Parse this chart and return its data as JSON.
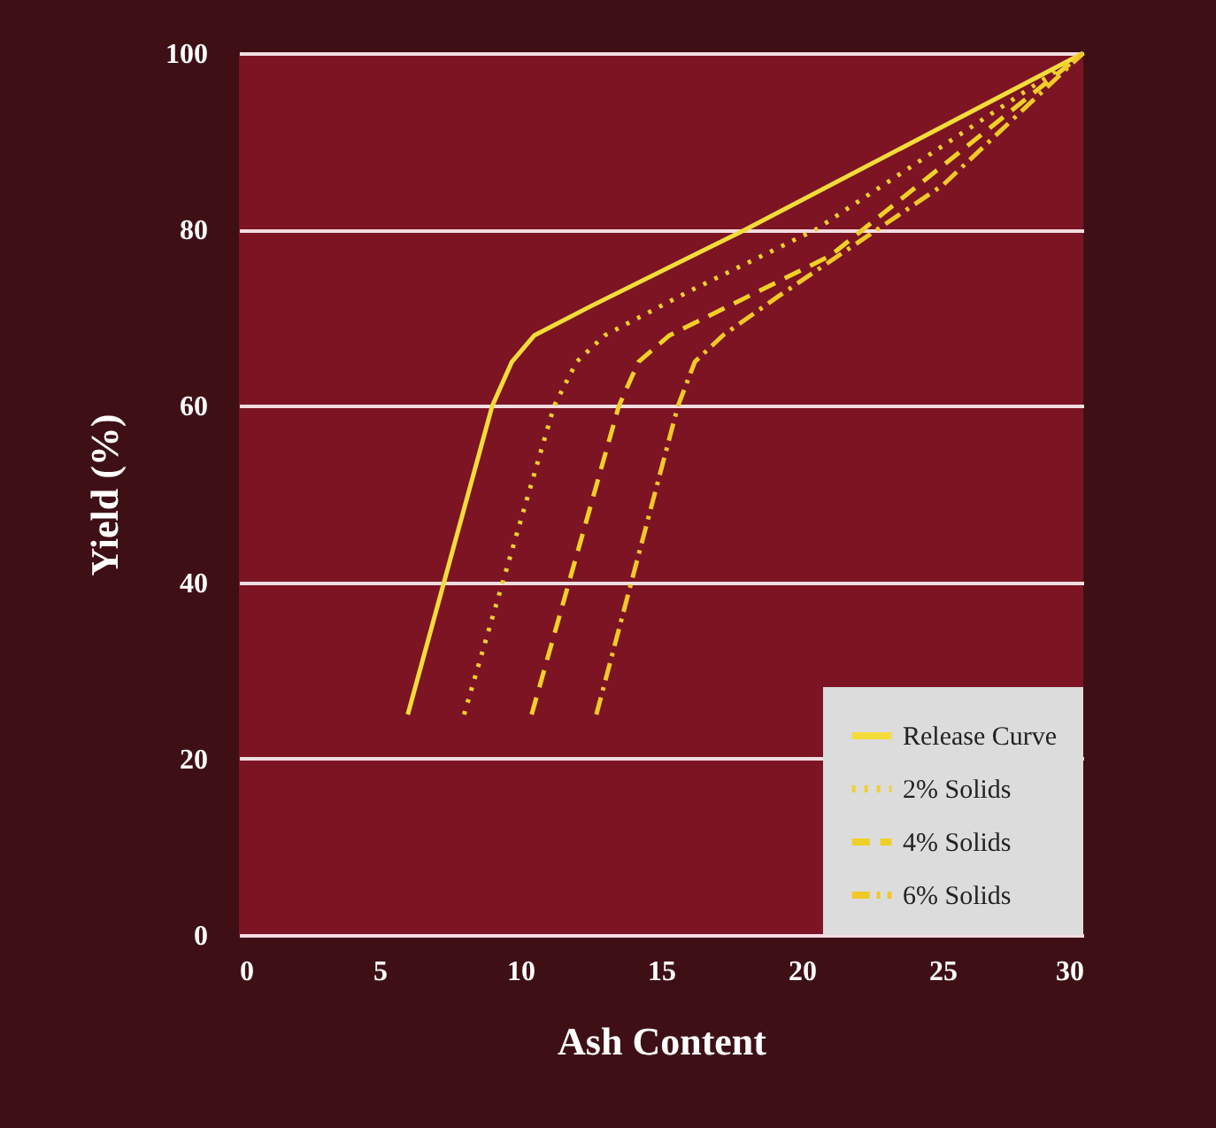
{
  "chart_data": {
    "type": "line",
    "xlabel": "Ash Content",
    "ylabel": "Yield (%)",
    "xlim": [
      0,
      30
    ],
    "xticks": [
      0,
      5,
      10,
      15,
      20,
      25,
      30
    ],
    "ylim": [
      0,
      100
    ],
    "yticks": [
      0,
      20,
      40,
      60,
      80,
      100
    ],
    "grid": "y",
    "legend": "bottom right",
    "marker": "none",
    "series": [
      {
        "name": "Release Curve",
        "color": "#f2dc3a",
        "line_style": "solid",
        "x": [
          6,
          9,
          9.7,
          10.5,
          12.5,
          18,
          30
        ],
        "values": [
          25,
          60,
          65,
          68,
          71.3,
          80,
          100
        ]
      },
      {
        "name": "2% Solids",
        "color": "#f0cf30",
        "line_style": "dotted",
        "x": [
          8,
          11.2,
          12,
          13,
          16,
          20.5,
          30
        ],
        "values": [
          25,
          60,
          65,
          68,
          73,
          80,
          100
        ]
      },
      {
        "name": "4% Solids",
        "color": "#f0d028",
        "line_style": "dashed",
        "x": [
          10.4,
          13.5,
          14.2,
          15.3,
          21,
          30
        ],
        "values": [
          25,
          60,
          65,
          68,
          77,
          100
        ]
      },
      {
        "name": "6% Solids",
        "color": "#f0c828",
        "line_style": "dashdot",
        "x": [
          12.7,
          15.6,
          16.2,
          17.2,
          19.2,
          25,
          30
        ],
        "values": [
          25,
          60,
          65,
          68,
          72.5,
          85,
          100
        ]
      }
    ]
  }
}
